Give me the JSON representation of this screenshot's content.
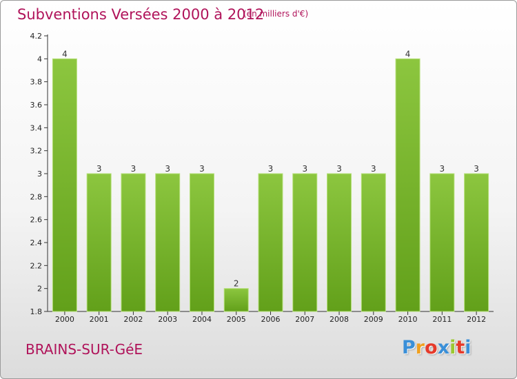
{
  "title": "Subventions Versées 2000 à 2012",
  "unit": "(en milliers d'€)",
  "commune": "BRAINS-SUR-GéE",
  "logo": {
    "letters": [
      "P",
      "r",
      "o",
      "x",
      "i",
      "t",
      "i"
    ],
    "colors": [
      "#3a8fd8",
      "#f0a020",
      "#e63a2a",
      "#3a8fd8",
      "#9bc830",
      "#e63a2a",
      "#3a8fd8"
    ]
  },
  "colors": {
    "bar": "#8cc63f",
    "bar_dark": "#62a01a",
    "title": "#b0135a",
    "axis": "#333333"
  },
  "chart_data": {
    "type": "bar",
    "categories": [
      "2000",
      "2001",
      "2002",
      "2003",
      "2004",
      "2005",
      "2006",
      "2007",
      "2008",
      "2009",
      "2010",
      "2011",
      "2012"
    ],
    "values": [
      4,
      3,
      3,
      3,
      3,
      2,
      3,
      3,
      3,
      3,
      4,
      3,
      3
    ],
    "data_labels": [
      "4",
      "3",
      "3",
      "3",
      "3",
      "2",
      "3",
      "3",
      "3",
      "3",
      "4",
      "3",
      "3"
    ],
    "yticks": [
      "1.8",
      "2",
      "2.2",
      "2.4",
      "2.6",
      "2.8",
      "3",
      "3.2",
      "3.4",
      "3.6",
      "3.8",
      "4",
      "4.2"
    ],
    "ylim": [
      1.8,
      4.2
    ],
    "grid": false,
    "title": "Subventions Versées 2000 à 2012",
    "xlabel": "",
    "ylabel": ""
  }
}
